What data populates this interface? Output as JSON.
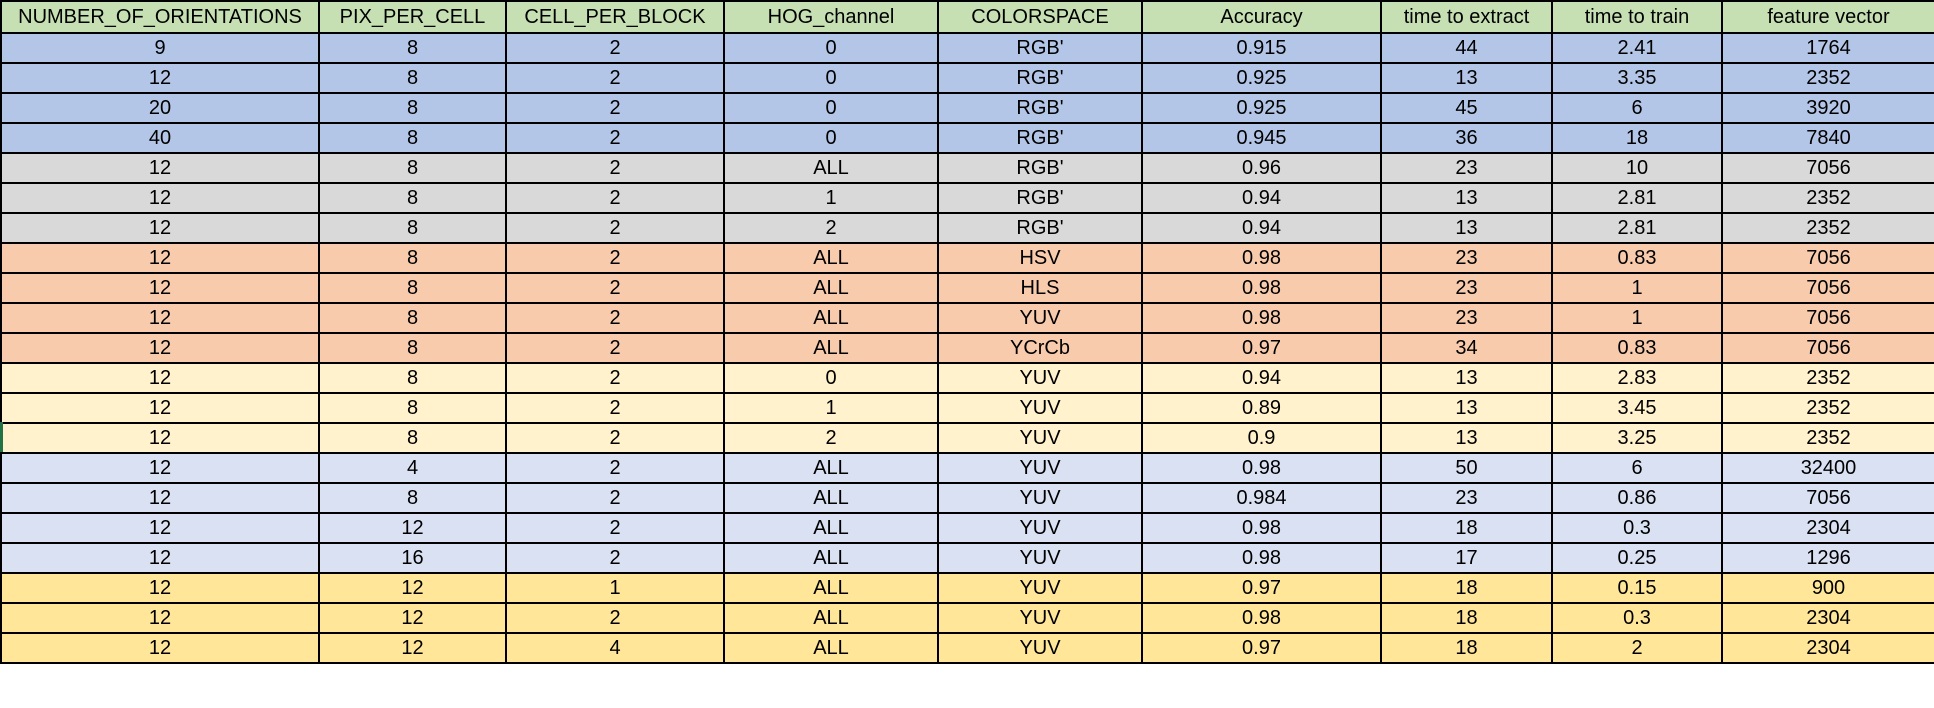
{
  "spreadsheet": {
    "colors": {
      "header": "#c6e0b4",
      "blue": "#b4c6e7",
      "gray": "#d9d9d9",
      "orange": "#f8cbad",
      "cream": "#fff2cc",
      "lavender": "#d9e1f2",
      "gold": "#ffe699",
      "selected_row_marker": "#217346"
    },
    "selected_row_index": 13,
    "headers": [
      "NUMBER_OF_ORIENTATIONS",
      "PIX_PER_CELL",
      "CELL_PER_BLOCK",
      "HOG_channel",
      "COLORSPACE",
      "Accuracy",
      "time to extract",
      "time to train",
      "feature vector"
    ],
    "rows": [
      {
        "group": "blue",
        "cells": [
          "9",
          "8",
          "2",
          "0",
          "RGB'",
          "0.915",
          "44",
          "2.41",
          "1764"
        ]
      },
      {
        "group": "blue",
        "cells": [
          "12",
          "8",
          "2",
          "0",
          "RGB'",
          "0.925",
          "13",
          "3.35",
          "2352"
        ]
      },
      {
        "group": "blue",
        "cells": [
          "20",
          "8",
          "2",
          "0",
          "RGB'",
          "0.925",
          "45",
          "6",
          "3920"
        ]
      },
      {
        "group": "blue",
        "cells": [
          "40",
          "8",
          "2",
          "0",
          "RGB'",
          "0.945",
          "36",
          "18",
          "7840"
        ]
      },
      {
        "group": "gray",
        "cells": [
          "12",
          "8",
          "2",
          "ALL",
          "RGB'",
          "0.96",
          "23",
          "10",
          "7056"
        ]
      },
      {
        "group": "gray",
        "cells": [
          "12",
          "8",
          "2",
          "1",
          "RGB'",
          "0.94",
          "13",
          "2.81",
          "2352"
        ]
      },
      {
        "group": "gray",
        "cells": [
          "12",
          "8",
          "2",
          "2",
          "RGB'",
          "0.94",
          "13",
          "2.81",
          "2352"
        ]
      },
      {
        "group": "orange",
        "cells": [
          "12",
          "8",
          "2",
          "ALL",
          "HSV",
          "0.98",
          "23",
          "0.83",
          "7056"
        ]
      },
      {
        "group": "orange",
        "cells": [
          "12",
          "8",
          "2",
          "ALL",
          "HLS",
          "0.98",
          "23",
          "1",
          "7056"
        ]
      },
      {
        "group": "orange",
        "cells": [
          "12",
          "8",
          "2",
          "ALL",
          "YUV",
          "0.98",
          "23",
          "1",
          "7056"
        ]
      },
      {
        "group": "orange",
        "cells": [
          "12",
          "8",
          "2",
          "ALL",
          "YCrCb",
          "0.97",
          "34",
          "0.83",
          "7056"
        ]
      },
      {
        "group": "cream",
        "cells": [
          "12",
          "8",
          "2",
          "0",
          "YUV",
          "0.94",
          "13",
          "2.83",
          "2352"
        ]
      },
      {
        "group": "cream",
        "cells": [
          "12",
          "8",
          "2",
          "1",
          "YUV",
          "0.89",
          "13",
          "3.45",
          "2352"
        ]
      },
      {
        "group": "cream",
        "cells": [
          "12",
          "8",
          "2",
          "2",
          "YUV",
          "0.9",
          "13",
          "3.25",
          "2352"
        ]
      },
      {
        "group": "lavender",
        "cells": [
          "12",
          "4",
          "2",
          "ALL",
          "YUV",
          "0.98",
          "50",
          "6",
          "32400"
        ]
      },
      {
        "group": "lavender",
        "cells": [
          "12",
          "8",
          "2",
          "ALL",
          "YUV",
          "0.984",
          "23",
          "0.86",
          "7056"
        ]
      },
      {
        "group": "lavender",
        "cells": [
          "12",
          "12",
          "2",
          "ALL",
          "YUV",
          "0.98",
          "18",
          "0.3",
          "2304"
        ]
      },
      {
        "group": "lavender",
        "cells": [
          "12",
          "16",
          "2",
          "ALL",
          "YUV",
          "0.98",
          "17",
          "0.25",
          "1296"
        ]
      },
      {
        "group": "gold",
        "cells": [
          "12",
          "12",
          "1",
          "ALL",
          "YUV",
          "0.97",
          "18",
          "0.15",
          "900"
        ]
      },
      {
        "group": "gold",
        "cells": [
          "12",
          "12",
          "2",
          "ALL",
          "YUV",
          "0.98",
          "18",
          "0.3",
          "2304"
        ]
      },
      {
        "group": "gold",
        "cells": [
          "12",
          "12",
          "4",
          "ALL",
          "YUV",
          "0.97",
          "18",
          "2",
          "2304"
        ]
      }
    ]
  }
}
